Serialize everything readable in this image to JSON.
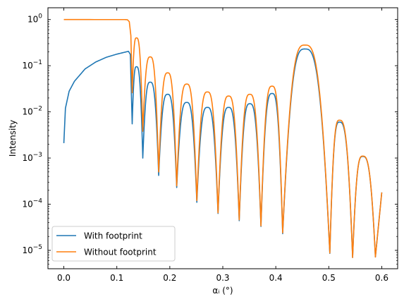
{
  "chart_data": {
    "type": "line",
    "title": "",
    "xlabel": "αᵢ (°)",
    "ylabel": "Intensity",
    "xlim": [
      -0.03,
      0.63
    ],
    "ylim": [
      4e-06,
      1.8
    ],
    "yscale": "log",
    "grid": false,
    "legend_position": "lower-left",
    "x_ticks": [
      0.0,
      0.1,
      0.2,
      0.3,
      0.4,
      0.5,
      0.6
    ],
    "x_tick_labels": [
      "0.0",
      "0.1",
      "0.2",
      "0.3",
      "0.4",
      "0.5",
      "0.6"
    ],
    "y_tick_exponents": [
      -5,
      -4,
      -3,
      -2,
      -1,
      0
    ],
    "critical_angle": 0.125,
    "fringe_minima": [
      {
        "x": 0.129,
        "with": 0.0055,
        "without": 0.026
      },
      {
        "x": 0.149,
        "with": 0.001,
        "without": 0.0038
      },
      {
        "x": 0.179,
        "with": 0.00042,
        "without": 0.0005
      },
      {
        "x": 0.213,
        "with": 0.00023,
        "without": 0.00025
      },
      {
        "x": 0.251,
        "with": 0.00011,
        "without": 0.00012
      },
      {
        "x": 0.291,
        "with": 6.3e-05,
        "without": 6.5e-05
      },
      {
        "x": 0.331,
        "with": 4.4e-05,
        "without": 4.6e-05
      },
      {
        "x": 0.372,
        "with": 3.3e-05,
        "without": 3.4e-05
      },
      {
        "x": 0.413,
        "with": 2.3e-05,
        "without": 2.4e-05
      },
      {
        "x": 0.502,
        "with": 8.6e-06,
        "without": 8.8e-06
      },
      {
        "x": 0.545,
        "with": 7e-06,
        "without": 7e-06
      },
      {
        "x": 0.588,
        "with": 7.2e-06,
        "without": 7.2e-06
      }
    ],
    "fringe_maxima": [
      {
        "x": 0.137,
        "with": 0.095,
        "without": 0.4
      },
      {
        "x": 0.163,
        "with": 0.044,
        "without": 0.155
      },
      {
        "x": 0.196,
        "with": 0.024,
        "without": 0.07
      },
      {
        "x": 0.232,
        "with": 0.016,
        "without": 0.04
      },
      {
        "x": 0.271,
        "with": 0.0125,
        "without": 0.027
      },
      {
        "x": 0.311,
        "with": 0.0125,
        "without": 0.022
      },
      {
        "x": 0.351,
        "with": 0.015,
        "without": 0.024
      },
      {
        "x": 0.393,
        "with": 0.025,
        "without": 0.036
      },
      {
        "x": 0.455,
        "with": 0.23,
        "without": 0.28
      },
      {
        "x": 0.52,
        "with": 0.006,
        "without": 0.0066
      },
      {
        "x": 0.564,
        "with": 0.00108,
        "without": 0.0011
      }
    ],
    "end_point": {
      "x": 0.6,
      "with": 0.00018,
      "without": 0.00018
    },
    "series": [
      {
        "name": "With footprint",
        "color": "#1f77b4",
        "start": {
          "x": 0.0,
          "y": 0.0021
        },
        "below_critical": [
          [
            0.0,
            0.0021
          ],
          [
            0.003,
            0.012
          ],
          [
            0.01,
            0.028
          ],
          [
            0.02,
            0.046
          ],
          [
            0.04,
            0.085
          ],
          [
            0.06,
            0.12
          ],
          [
            0.08,
            0.152
          ],
          [
            0.1,
            0.178
          ],
          [
            0.115,
            0.196
          ],
          [
            0.122,
            0.205
          ],
          [
            0.1255,
            0.175
          ]
        ]
      },
      {
        "name": "Without footprint",
        "color": "#ff7f0e",
        "start": {
          "x": 0.0,
          "y": 1.0
        },
        "below_critical": [
          [
            0.0,
            1.0
          ],
          [
            0.115,
            0.998
          ],
          [
            0.12,
            0.99
          ],
          [
            0.1235,
            0.9
          ],
          [
            0.1265,
            0.45
          ]
        ]
      }
    ]
  }
}
